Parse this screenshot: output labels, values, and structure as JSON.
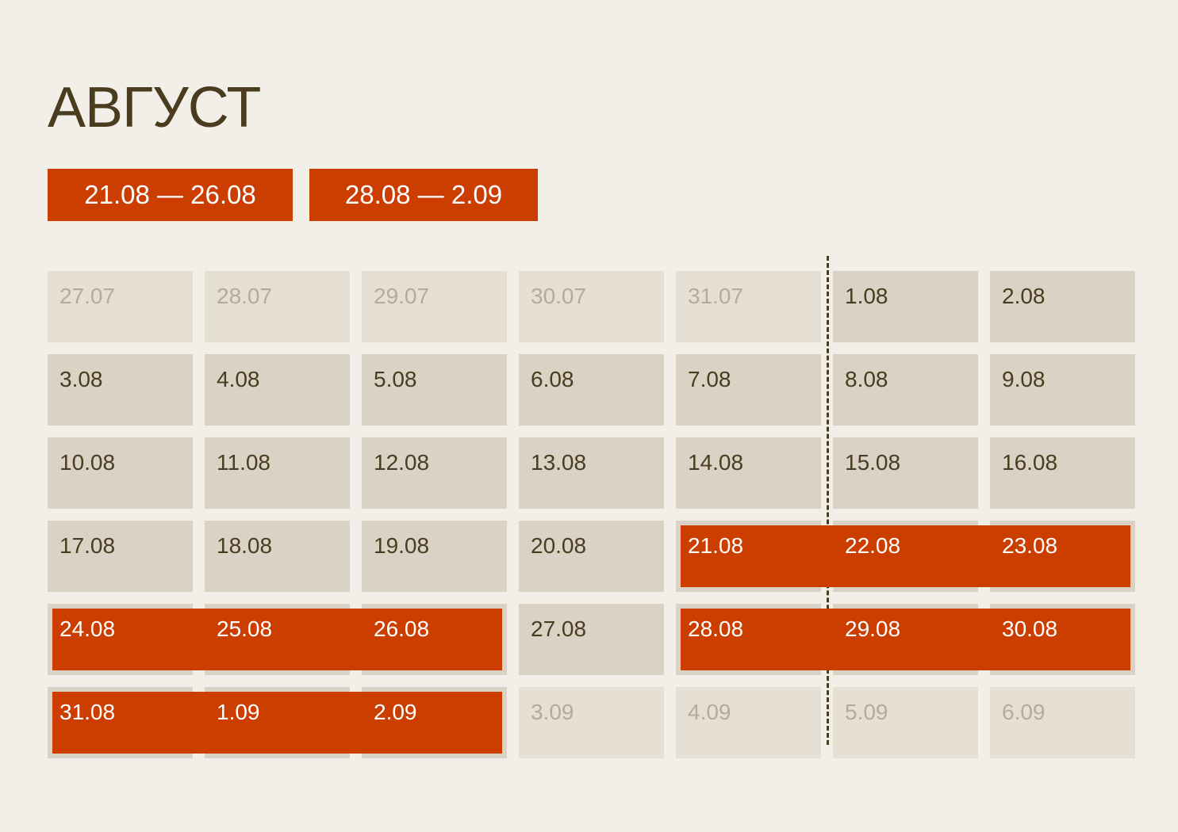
{
  "title": "АВГУСТ",
  "ranges": [
    {
      "label": "21.08 —  26.08"
    },
    {
      "label": "28.08 —  2.09"
    }
  ],
  "weeks": [
    [
      "27.07",
      "28.07",
      "29.07",
      "30.07",
      "31.07",
      "1.08",
      "2.08"
    ],
    [
      "3.08",
      "4.08",
      "5.08",
      "6.08",
      "7.08",
      "8.08",
      "9.08"
    ],
    [
      "10.08",
      "11.08",
      "12.08",
      "13.08",
      "14.08",
      "15.08",
      "16.08"
    ],
    [
      "17.08",
      "18.08",
      "19.08",
      "20.08",
      "21.08",
      "22.08",
      "23.08"
    ],
    [
      "24.08",
      "25.08",
      "26.08",
      "27.08",
      "28.08",
      "29.08",
      "30.08"
    ],
    [
      "31.08",
      "1.09",
      "2.09",
      "3.09",
      "4.09",
      "5.09",
      "6.09"
    ]
  ],
  "muted_days": [
    "27.07",
    "28.07",
    "29.07",
    "30.07",
    "31.07",
    "3.09",
    "4.09",
    "5.09",
    "6.09"
  ],
  "highlighted_days": [
    "21.08",
    "22.08",
    "23.08",
    "24.08",
    "25.08",
    "26.08",
    "28.08",
    "29.08",
    "30.08",
    "31.08",
    "1.09",
    "2.09"
  ],
  "colors": {
    "background": "#f2eee8",
    "cell": "#dad2c5",
    "cell_muted": "#e5dfd4",
    "accent": "#cc3d00",
    "text": "#4a3c1f",
    "text_muted": "#b5ab9d"
  }
}
